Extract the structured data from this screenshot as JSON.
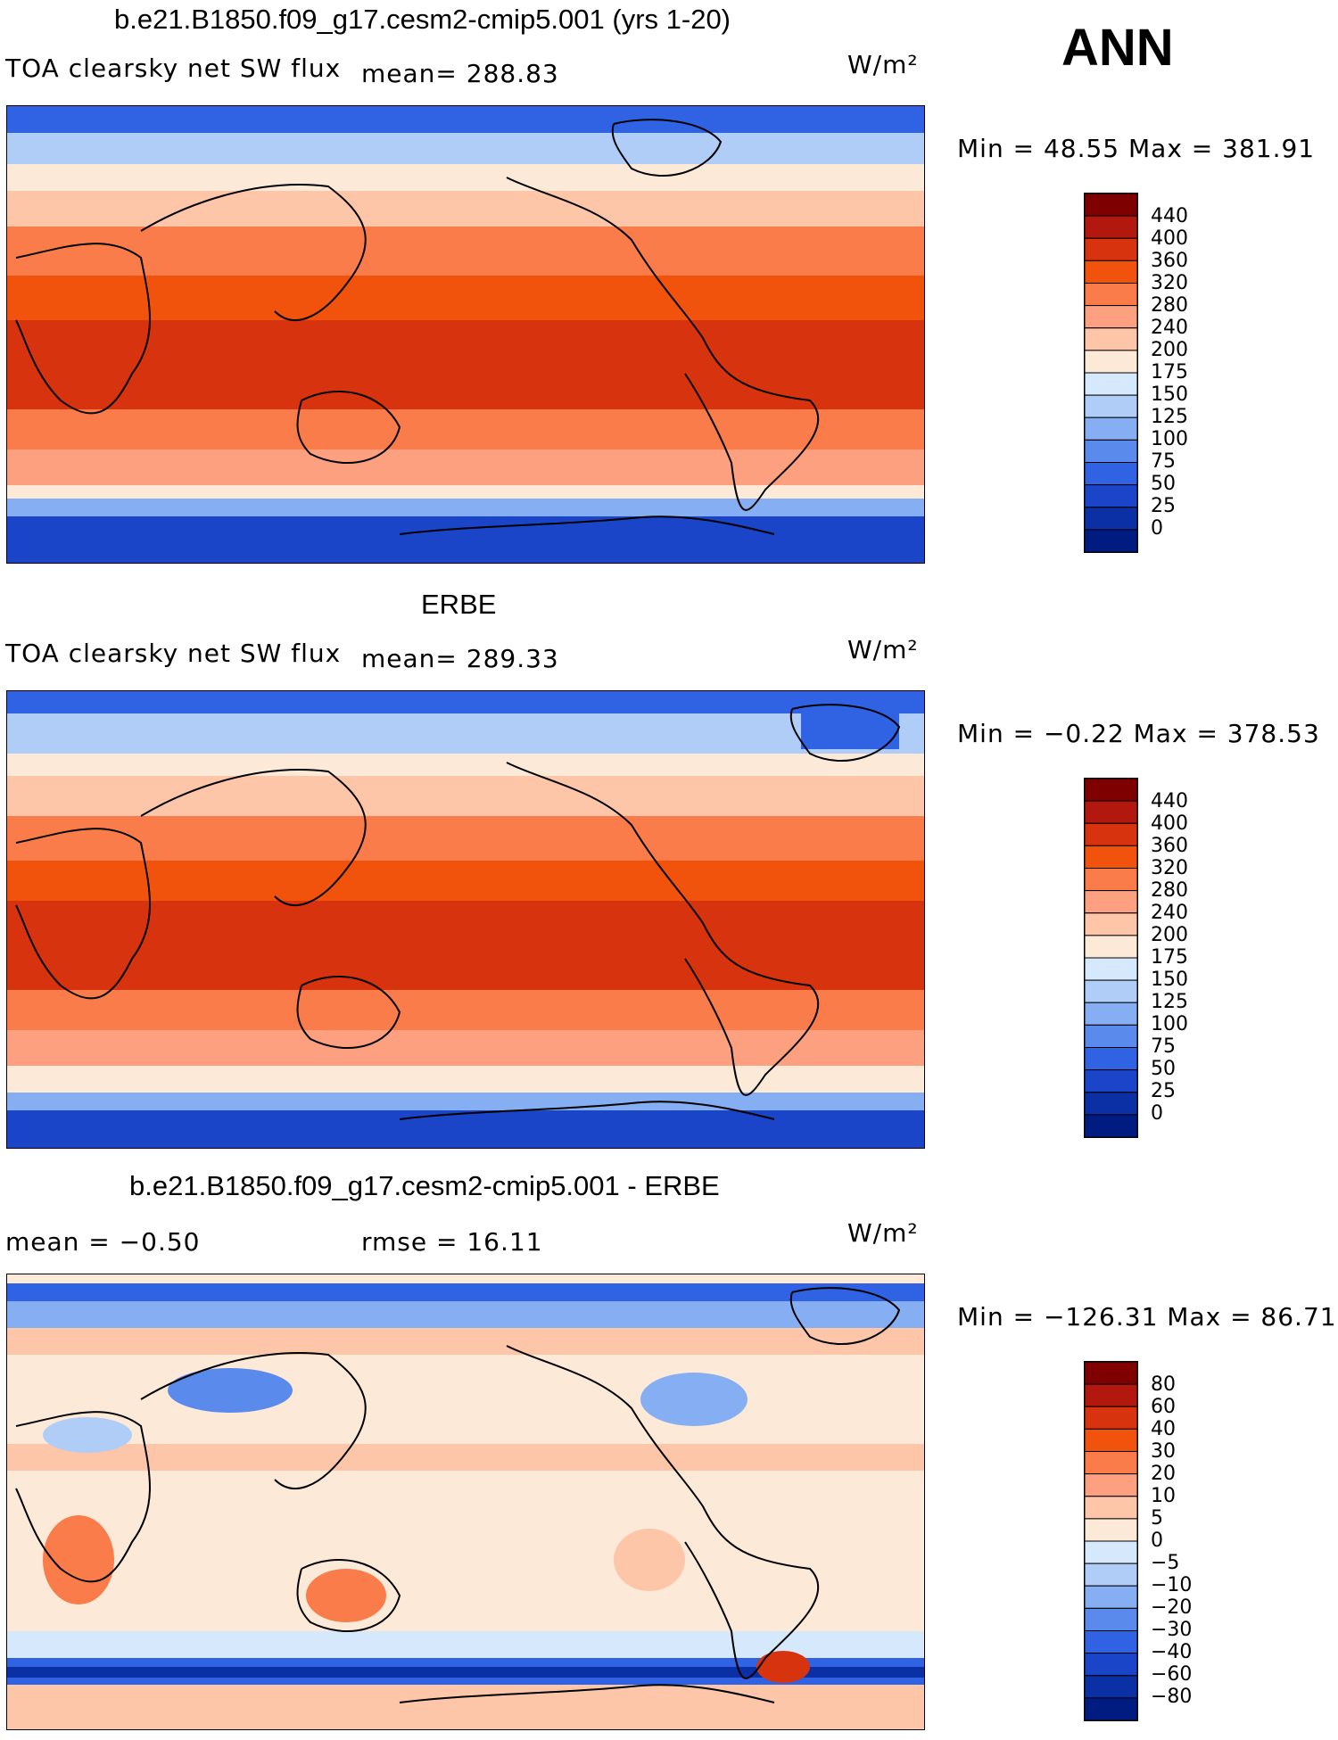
{
  "season": "ANN",
  "units": "W/m²",
  "panels": [
    {
      "title": "b.e21.B1850.f09_g17.cesm2-cmip5.001 (yrs 1-20)",
      "variable": "TOA clearsky net SW flux",
      "stat_left": "",
      "mean": "mean= 288.83",
      "minmax": "Min =   48.55 Max = 381.91",
      "colorbar_levels": [
        "440",
        "400",
        "360",
        "320",
        "280",
        "240",
        "200",
        "175",
        "150",
        "125",
        "100",
        "75",
        "50",
        "25",
        "0"
      ]
    },
    {
      "title": "ERBE",
      "variable": "TOA clearsky net SW flux",
      "stat_left": "",
      "mean": "mean= 289.33",
      "minmax": "Min =   −0.22 Max = 378.53",
      "colorbar_levels": [
        "440",
        "400",
        "360",
        "320",
        "280",
        "240",
        "200",
        "175",
        "150",
        "125",
        "100",
        "75",
        "50",
        "25",
        "0"
      ]
    },
    {
      "title": "b.e21.B1850.f09_g17.cesm2-cmip5.001 - ERBE",
      "variable": "",
      "stat_left": "mean =   −0.50",
      "mean": "rmse =   16.11",
      "minmax": "Min = −126.31 Max =   86.71",
      "colorbar_levels": [
        "80",
        "60",
        "40",
        "30",
        "20",
        "10",
        "5",
        "0",
        "−5",
        "−10",
        "−20",
        "−30",
        "−40",
        "−60",
        "−80"
      ]
    }
  ],
  "colors": {
    "abs_scale": [
      "#7f0000",
      "#b2180e",
      "#d6330e",
      "#f2530c",
      "#f97c4a",
      "#fda07f",
      "#fdc6a8",
      "#fde9d8",
      "#d6e8fb",
      "#b0cdf7",
      "#86aef2",
      "#5a8aec",
      "#2f63e4",
      "#1a45c8",
      "#0b2fa5",
      "#001c80"
    ],
    "diff_scale": [
      "#7f0000",
      "#b2180e",
      "#d6330e",
      "#f2530c",
      "#f97c4a",
      "#fda07f",
      "#fdc6a8",
      "#fde9d8",
      "#d6e8fb",
      "#b0cdf7",
      "#86aef2",
      "#5a8aec",
      "#2f63e4",
      "#1a45c8",
      "#0b2fa5",
      "#001c80"
    ]
  }
}
